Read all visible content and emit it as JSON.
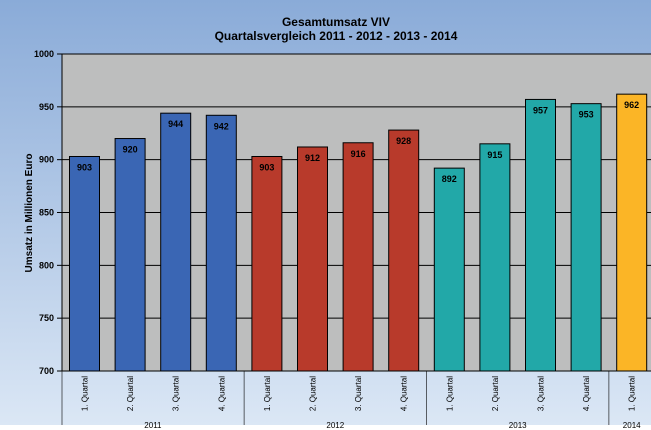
{
  "chart_data": {
    "type": "bar",
    "title": "Gesamtumsatz VIV",
    "subtitle": "Quartalsvergleich 2011 - 2012 - 2013 - 2014",
    "ylabel": "Umsatz in Millionen Euro",
    "xlabel": "",
    "ylim": [
      700,
      1000
    ],
    "yticks": [
      700,
      750,
      800,
      850,
      900,
      950,
      1000
    ],
    "grid": true,
    "legend": "none",
    "categories": [
      "1. Quartal",
      "2. Quartal",
      "3. Quartal",
      "4. Quartal",
      "1. Quartal",
      "2. Quartal",
      "3. Quartal",
      "4. Quartal",
      "1. Quartal",
      "2. Quartal",
      "3. Quartal",
      "4. Quartal",
      "1. Quartal"
    ],
    "values": [
      903,
      920,
      944,
      942,
      903,
      912,
      916,
      928,
      892,
      915,
      957,
      953,
      962
    ],
    "groups": [
      {
        "label": "2011",
        "count": 4,
        "color": "#3a66b4"
      },
      {
        "label": "2012",
        "count": 4,
        "color": "#b83a2b"
      },
      {
        "label": "2013",
        "count": 4,
        "color": "#22a8a8"
      },
      {
        "label": "2014",
        "count": 1,
        "color": "#fbb526"
      }
    ],
    "colors": {
      "background": "#8fb0da",
      "plot_area": "#bdbebe",
      "grid": "#000000"
    }
  }
}
